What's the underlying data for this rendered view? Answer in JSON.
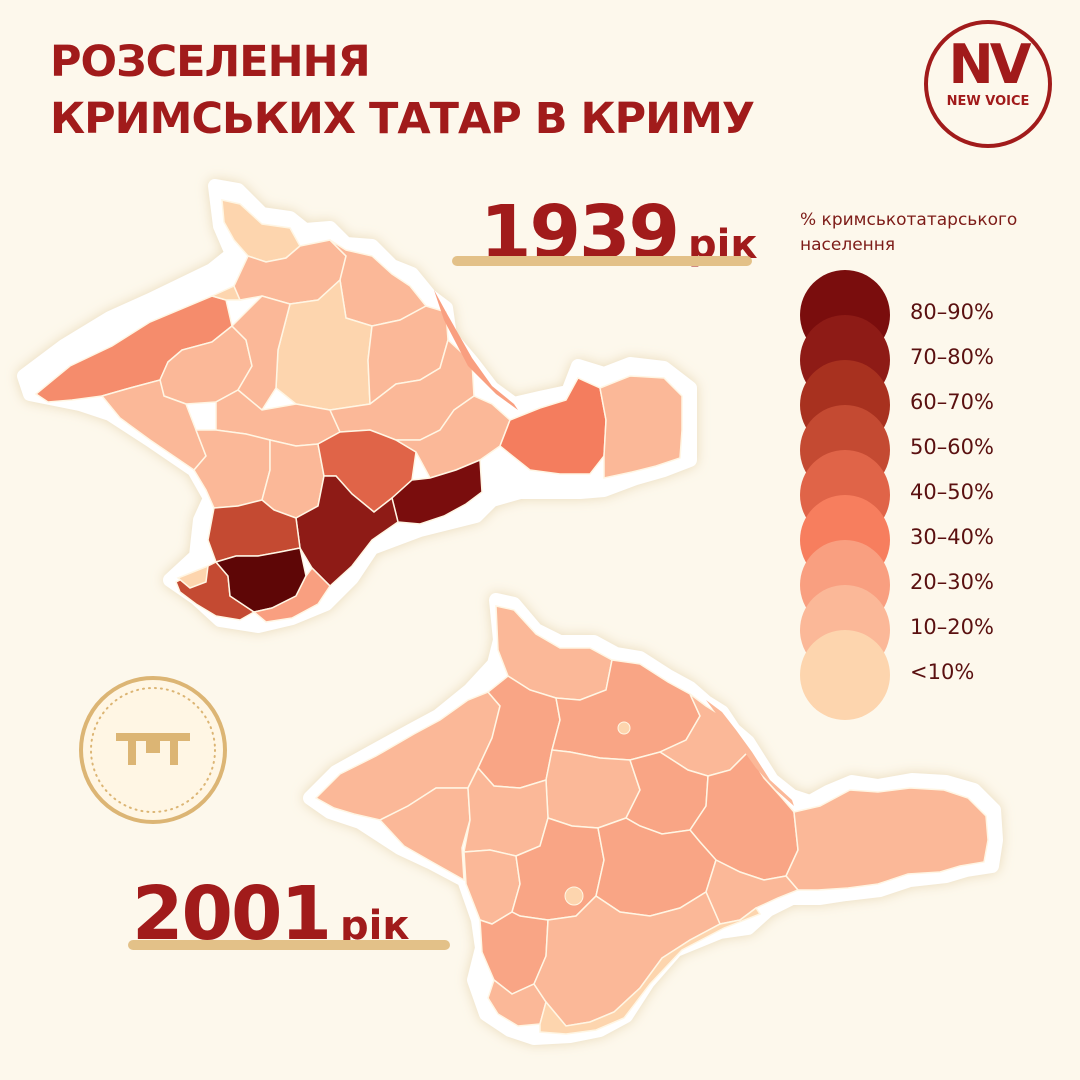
{
  "title": {
    "line1": "РОЗСЕЛЕННЯ",
    "line2": "КРИМСЬКИХ ТАТАР В КРИМУ"
  },
  "logo": {
    "mark": "NV",
    "subtitle": "NEW VOICE"
  },
  "maps": [
    {
      "year": "1939",
      "unit": "рік"
    },
    {
      "year": "2001",
      "unit": "рік"
    }
  ],
  "legend": {
    "title_line1": "% кримськотатарського",
    "title_line2": "населення",
    "items": [
      {
        "label": "80–90%",
        "color": "#7a0d0d"
      },
      {
        "label": "70–80%",
        "color": "#8e1b16"
      },
      {
        "label": "60–70%",
        "color": "#a8311f"
      },
      {
        "label": "50–60%",
        "color": "#c44a32"
      },
      {
        "label": "40–50%",
        "color": "#e06448"
      },
      {
        "label": "30–40%",
        "color": "#f77e5e"
      },
      {
        "label": "20–30%",
        "color": "#f99f80"
      },
      {
        "label": "10–20%",
        "color": "#fbb898"
      },
      {
        "label": "<10%",
        "color": "#fdd5ae"
      }
    ]
  },
  "emblem": {
    "icon": "tamga-icon",
    "color": "#dcb574"
  }
}
